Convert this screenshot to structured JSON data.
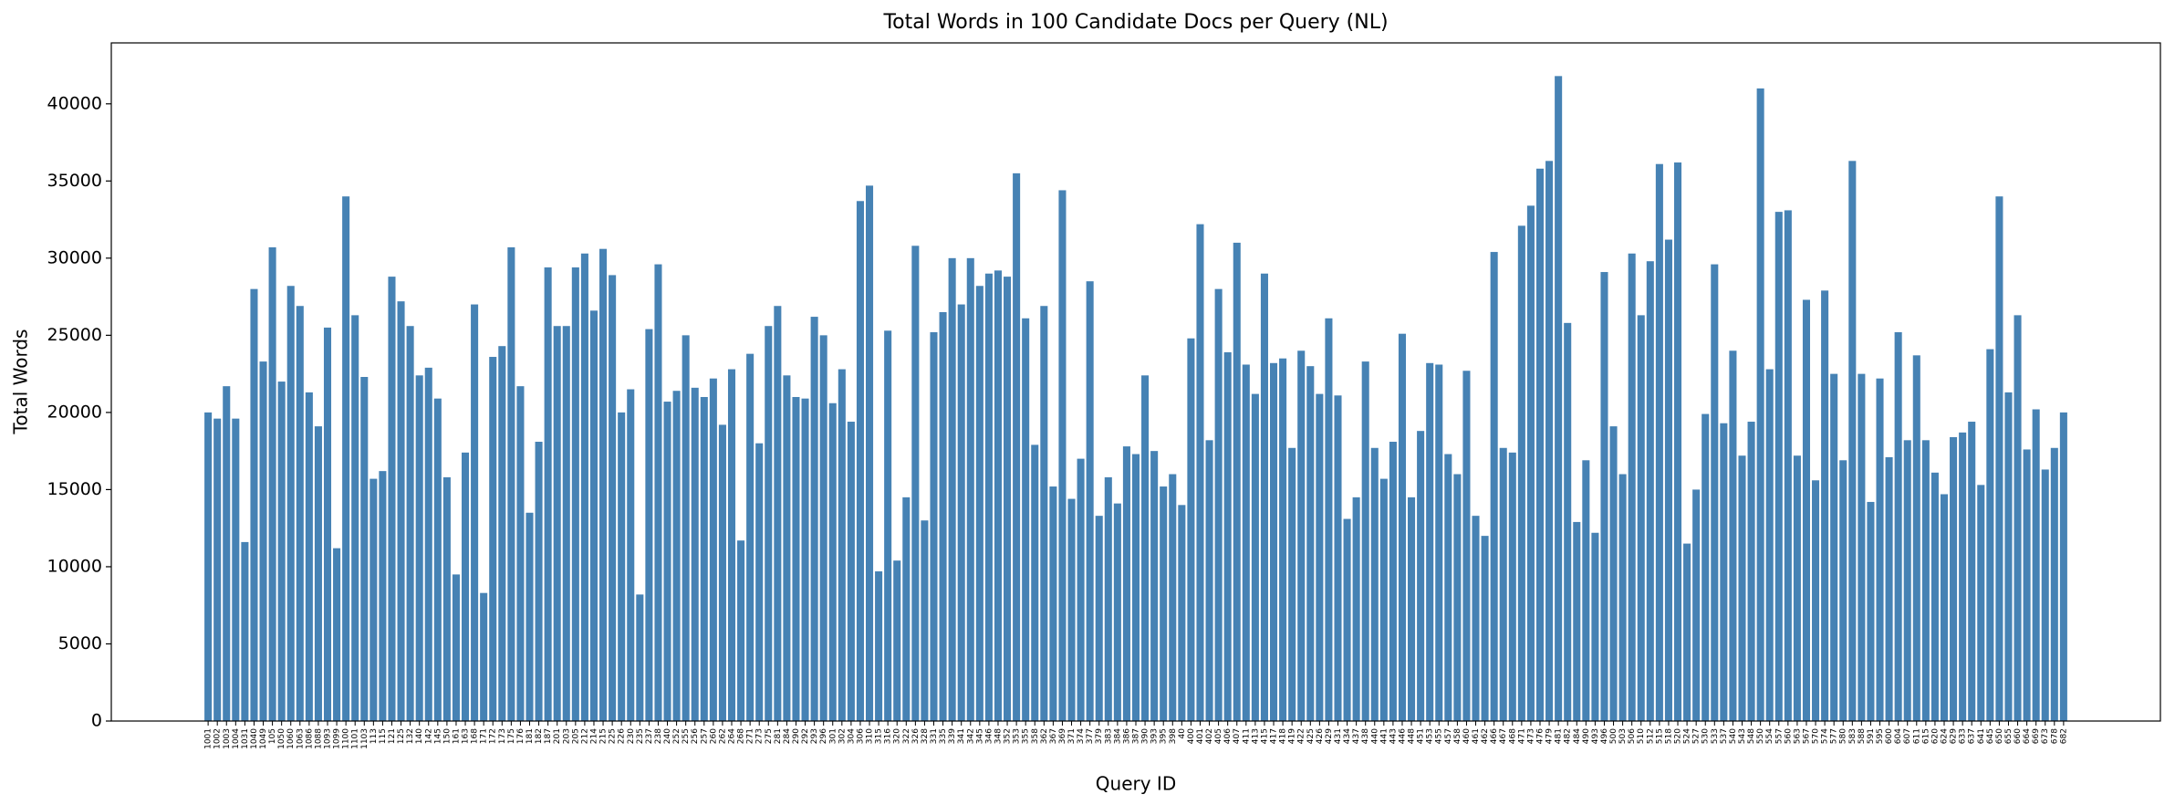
{
  "chart_data": {
    "type": "bar",
    "title": "Total Words in 100 Candidate Docs per Query (NL)",
    "xlabel": "Query ID",
    "ylabel": "Total Words",
    "color": "#4682b4",
    "categories": [
      "1001",
      "1002",
      "1003",
      "1004",
      "1031",
      "1040",
      "1049",
      "105",
      "1050",
      "1060",
      "1063",
      "1086",
      "1088",
      "1093",
      "1099",
      "1100",
      "1101",
      "1103",
      "113",
      "115",
      "121",
      "125",
      "132",
      "140",
      "142",
      "145",
      "150",
      "161",
      "163",
      "168",
      "171",
      "172",
      "173",
      "175",
      "176",
      "181",
      "182",
      "187",
      "201",
      "203",
      "205",
      "212",
      "214",
      "215",
      "225",
      "226",
      "230",
      "235",
      "237",
      "238",
      "240",
      "252",
      "255",
      "256",
      "257",
      "260",
      "262",
      "264",
      "268",
      "271",
      "273",
      "275",
      "281",
      "284",
      "290",
      "292",
      "293",
      "296",
      "301",
      "302",
      "304",
      "306",
      "310",
      "315",
      "316",
      "320",
      "322",
      "326",
      "328",
      "331",
      "335",
      "339",
      "341",
      "342",
      "345",
      "346",
      "348",
      "352",
      "353",
      "355",
      "358",
      "362",
      "367",
      "369",
      "371",
      "374",
      "377",
      "379",
      "383",
      "384",
      "386",
      "387",
      "390",
      "393",
      "395",
      "398",
      "40",
      "400",
      "401",
      "402",
      "405",
      "406",
      "407",
      "411",
      "413",
      "415",
      "417",
      "418",
      "419",
      "422",
      "425",
      "426",
      "429",
      "431",
      "434",
      "437",
      "438",
      "440",
      "441",
      "443",
      "446",
      "448",
      "451",
      "453",
      "455",
      "457",
      "458",
      "460",
      "461",
      "462",
      "466",
      "467",
      "468",
      "471",
      "473",
      "476",
      "479",
      "481",
      "482",
      "484",
      "490",
      "493",
      "496",
      "500",
      "503",
      "506",
      "510",
      "512",
      "515",
      "518",
      "520",
      "524",
      "527",
      "530",
      "533",
      "537",
      "540",
      "543",
      "548",
      "550",
      "554",
      "557",
      "560",
      "563",
      "567",
      "570",
      "574",
      "577",
      "580",
      "583",
      "588",
      "591",
      "595",
      "600",
      "604",
      "607",
      "611",
      "615",
      "620",
      "624",
      "629",
      "633",
      "637",
      "641",
      "645",
      "650",
      "655",
      "660",
      "664",
      "669",
      "673",
      "678",
      "682"
    ],
    "values": [
      20000,
      19600,
      21700,
      19600,
      11600,
      28000,
      23300,
      30700,
      22000,
      28200,
      26900,
      21300,
      19100,
      25500,
      11200,
      34000,
      26300,
      22300,
      15700,
      16200,
      28800,
      27200,
      25600,
      22400,
      22900,
      20900,
      15800,
      9500,
      17400,
      27000,
      8300,
      23600,
      24300,
      30700,
      21700,
      13500,
      18100,
      29400,
      25600,
      25600,
      29400,
      30300,
      26600,
      30600,
      28900,
      20000,
      21500,
      8200,
      25400,
      29600,
      20700,
      21400,
      25000,
      21600,
      21000,
      22200,
      19200,
      22800,
      11700,
      23800,
      18000,
      25600,
      26900,
      22400,
      21000,
      20900,
      26200,
      25000,
      20600,
      22800,
      19400,
      33700,
      34700,
      9700,
      25300,
      10400,
      14500,
      30800,
      13000,
      25200,
      26500,
      30000,
      27000,
      30000,
      28200,
      29000,
      29200,
      28800,
      35500,
      26100,
      17900,
      26900,
      15200,
      34400,
      14400,
      17000,
      28500,
      13300,
      15800,
      14100,
      17800,
      17300,
      22400,
      17500,
      15200,
      16000,
      14000,
      24800,
      32200,
      18200,
      28000,
      23900,
      31000,
      23100,
      21200,
      29000,
      23200,
      23500,
      17700,
      24000,
      23000,
      21200,
      26100,
      21100,
      13100,
      14500,
      23300,
      17700,
      15700,
      18100,
      25100,
      14500,
      18800,
      23200,
      23100,
      17300,
      16000,
      22700,
      13300,
      12000,
      30400,
      17700,
      17400,
      32100,
      33400,
      35800,
      36300,
      41800,
      25800,
      12900,
      16900,
      12200,
      29100,
      19100,
      16000,
      30300,
      26300,
      29800,
      36100,
      31200,
      36200,
      11500,
      15000,
      19900,
      29600,
      19300,
      24000,
      17200,
      19400,
      41000,
      22800,
      33000,
      33100,
      17200,
      27300,
      15600,
      27900,
      22500,
      16900,
      36300,
      22500,
      14200,
      22200,
      17100,
      25200,
      18200,
      23700,
      18200,
      16100,
      14700,
      18400,
      18700,
      19400,
      15300,
      24100,
      34000,
      21300,
      26300,
      17600,
      20200,
      16300,
      17700,
      20000
    ],
    "ylim": [
      0,
      43950
    ],
    "yticks": [
      0,
      5000,
      10000,
      15000,
      20000,
      25000,
      30000,
      35000,
      40000
    ]
  }
}
